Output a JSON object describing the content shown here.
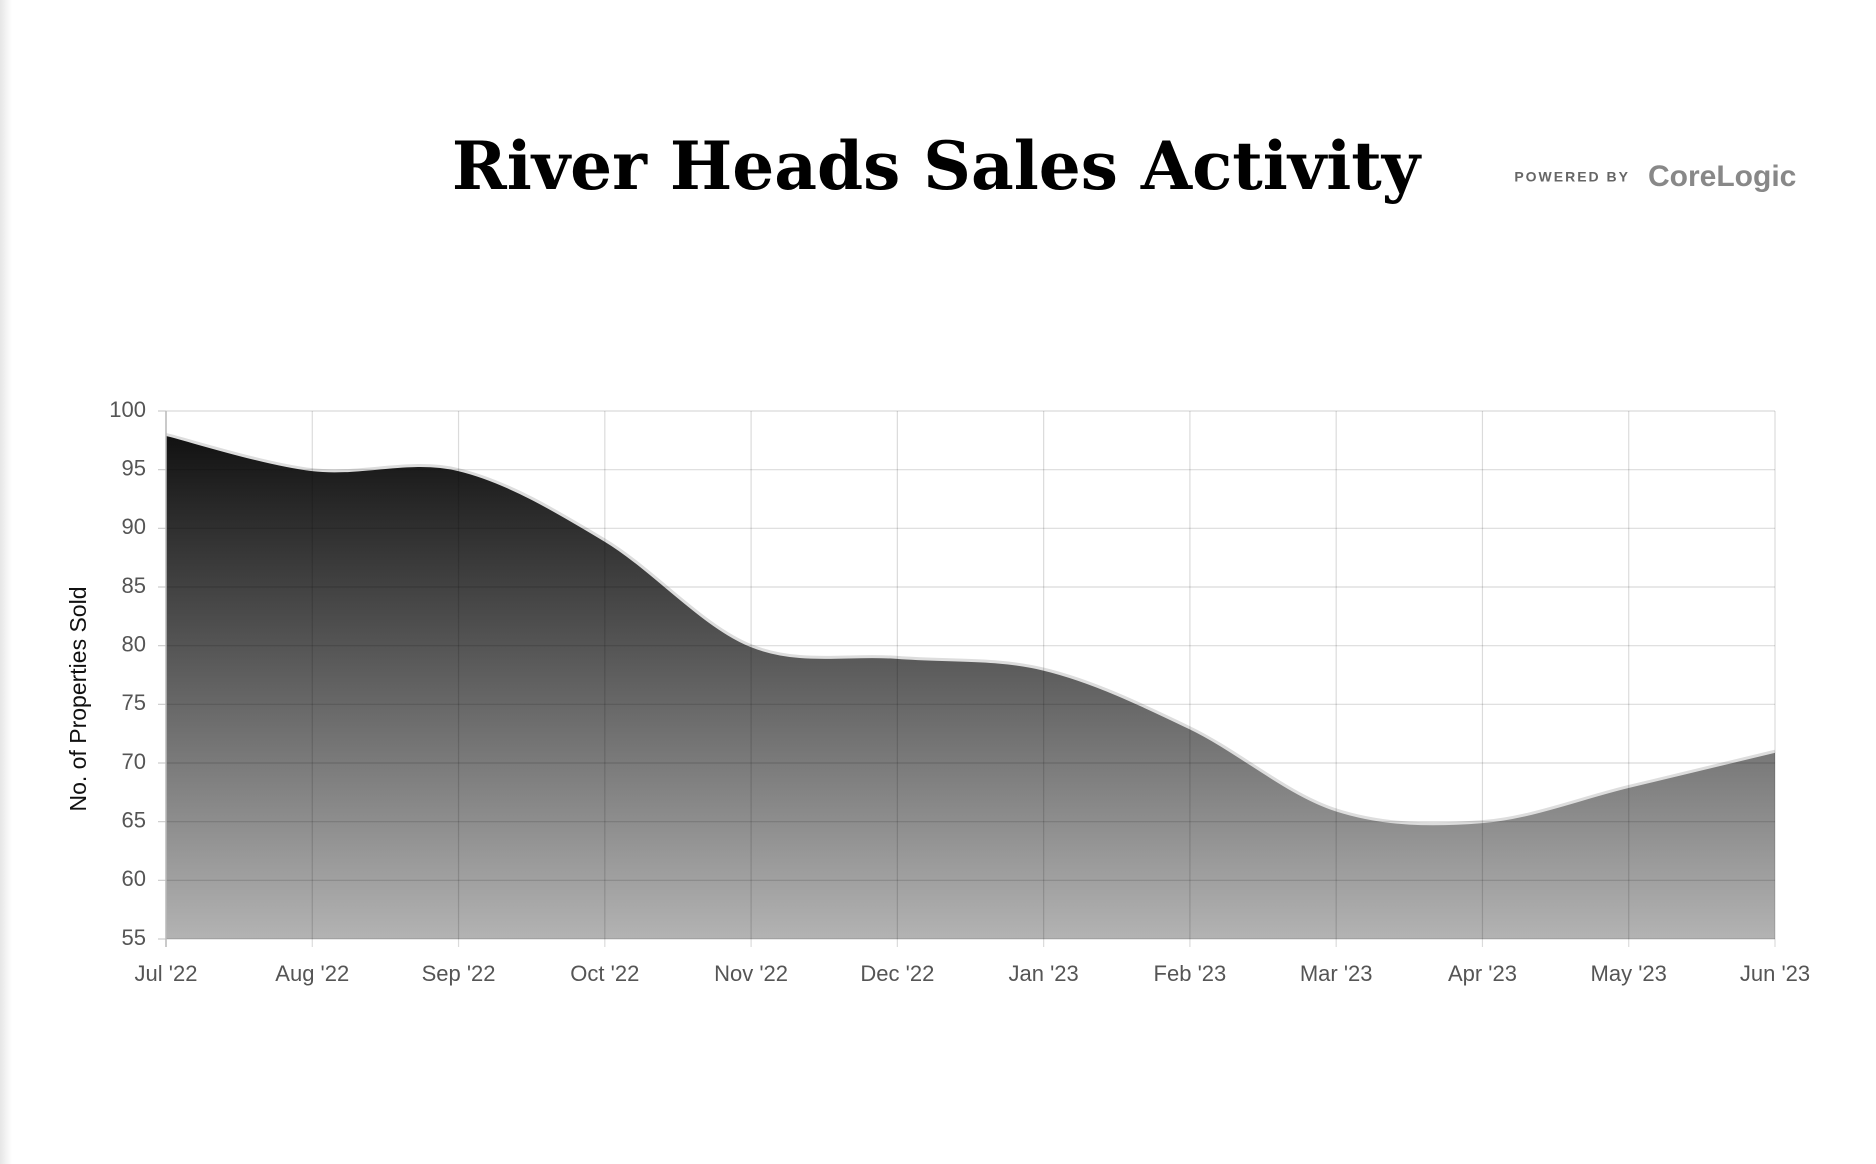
{
  "chart_data": {
    "type": "area",
    "title": "River Heads Sales Activity",
    "y_label": "No. of Properties Sold",
    "categories": [
      "Jul '22",
      "Aug '22",
      "Sep '22",
      "Oct '22",
      "Nov '22",
      "Dec '22",
      "Jan '23",
      "Feb '23",
      "Mar '23",
      "Apr '23",
      "May '23",
      "Jun '23"
    ],
    "values": [
      98,
      95,
      95,
      89,
      80,
      79,
      78,
      73,
      66,
      65,
      68,
      71
    ],
    "ylim": [
      55,
      100
    ],
    "yticks": [
      55,
      60,
      65,
      70,
      75,
      80,
      85,
      90,
      95,
      100
    ],
    "grid": true,
    "smooth": true,
    "gradient": [
      "#111111",
      "#b3b3b3"
    ],
    "line_color": "#dddddd"
  },
  "branding": {
    "prefix": "POWERED BY",
    "brand": "CoreLogic"
  }
}
